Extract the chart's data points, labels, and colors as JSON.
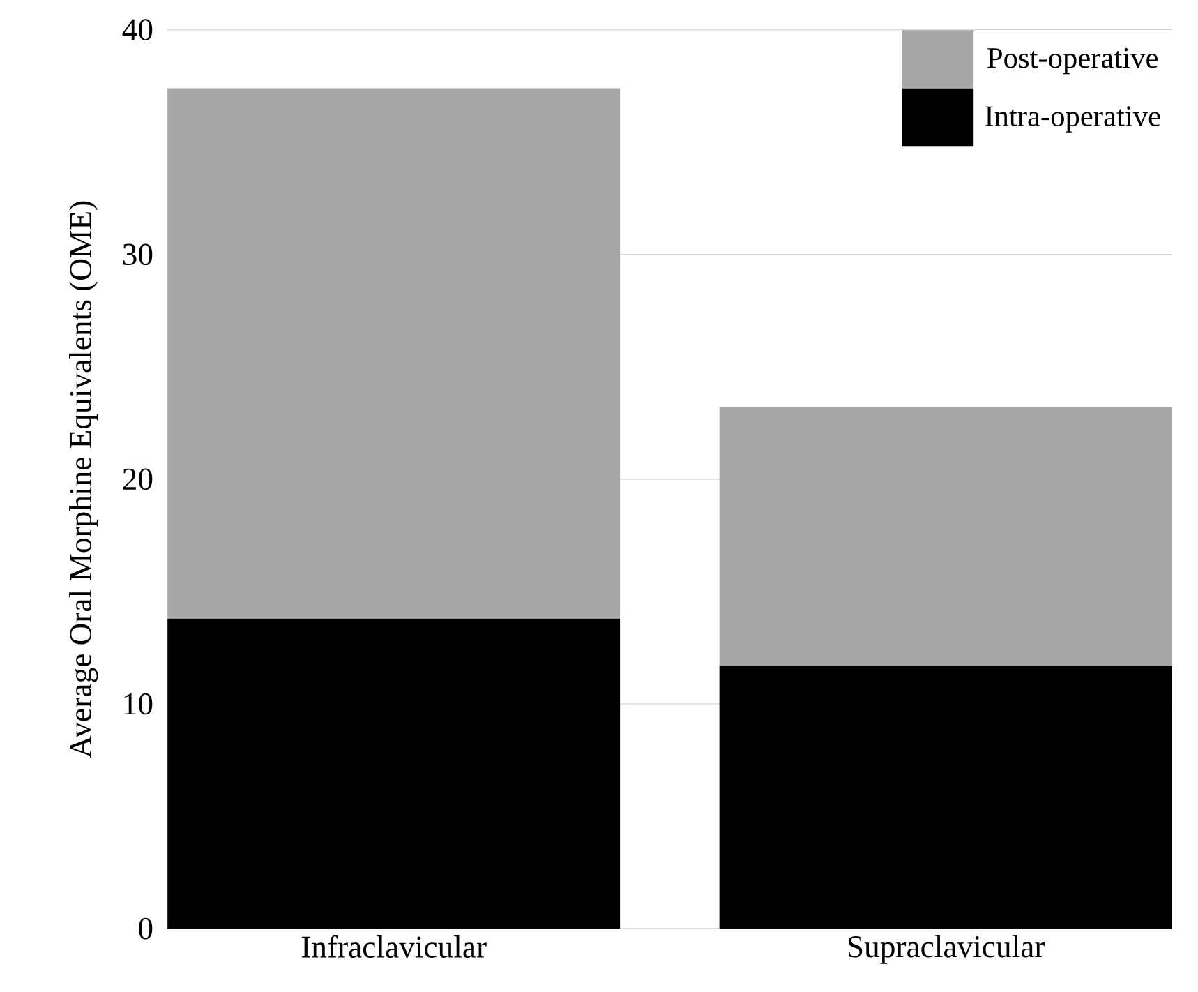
{
  "chart_data": {
    "type": "bar",
    "stacked": true,
    "ylabel": "Average Oral Morphine Equivalents (OME)",
    "categories": [
      "Infraclavicular",
      "Supraclavicular"
    ],
    "series": [
      {
        "name": "Intra-operative",
        "color": "#000000",
        "values": [
          13.8,
          11.7
        ]
      },
      {
        "name": "Post-operative",
        "color": "#a6a6a6",
        "values": [
          23.6,
          11.5
        ]
      }
    ],
    "ylim": [
      0,
      40
    ],
    "yticks": [
      0,
      10,
      20,
      30,
      40
    ],
    "grid": "y",
    "legend": "top right"
  }
}
